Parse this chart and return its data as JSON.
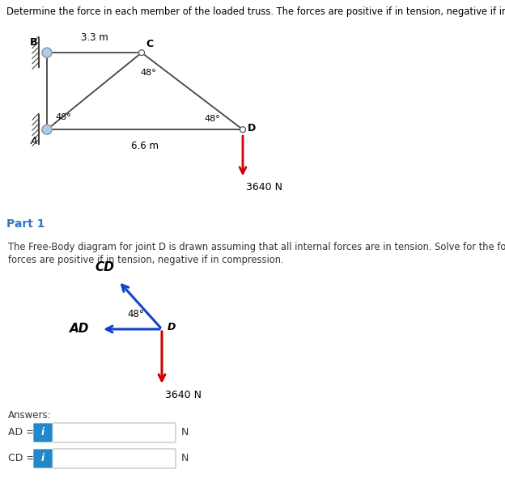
{
  "title": "Determine the force in each member of the loaded truss. The forces are positive if in tension, negative if in compression.",
  "bc_label": "3.3 m",
  "ad_label": "6.6 m",
  "angle_a": "48°",
  "angle_c": "48°",
  "angle_d": "48°",
  "load": "3640 N",
  "part1_label": "Part 1",
  "fbd_text1": "The Free-Body diagram for joint D is drawn assuming that all internal forces are in tension. Solve for the forces in AD and CD. The",
  "fbd_text2": "forces are positive if in tension, negative if in compression.",
  "fbd_angle": "48°",
  "fbd_load": "3640 N",
  "answers_label": "Answers:",
  "AD_label": "AD =",
  "CD_label": "CD =",
  "N_label": "N",
  "bg_white": "#ffffff",
  "bg_gray": "#ebebeb",
  "bg_sep": "#d8d8d8",
  "truss_color": "#444444",
  "arrow_red": "#cc0000",
  "arrow_blue": "#1144cc",
  "support_fill": "#aaccee",
  "support_edge": "#888888",
  "part1_color": "#3377bb",
  "input_border": "#bbbbbb",
  "input_bg": "#ffffff",
  "info_btn_color": "#2288cc",
  "text_color": "#333333",
  "cd_label_color": "#000000",
  "ad_label_color": "#000000"
}
